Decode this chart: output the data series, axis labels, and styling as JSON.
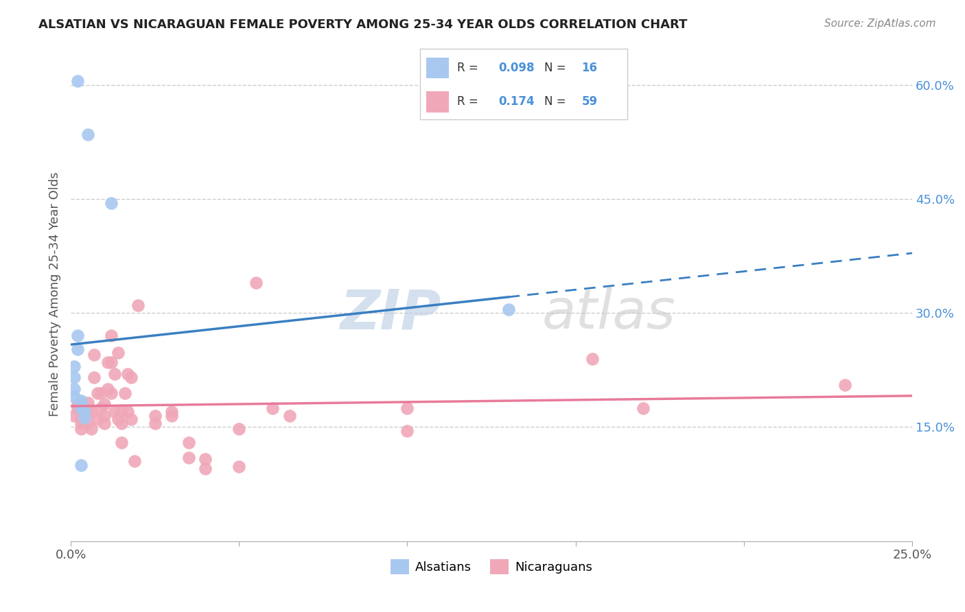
{
  "title": "ALSATIAN VS NICARAGUAN FEMALE POVERTY AMONG 25-34 YEAR OLDS CORRELATION CHART",
  "source": "Source: ZipAtlas.com",
  "ylabel": "Female Poverty Among 25-34 Year Olds",
  "x_min": 0.0,
  "x_max": 0.25,
  "y_min": 0.0,
  "y_max": 0.65,
  "x_tick_pos": [
    0.0,
    0.05,
    0.1,
    0.15,
    0.2,
    0.25
  ],
  "x_tick_labels": [
    "0.0%",
    "",
    "",
    "",
    "",
    "25.0%"
  ],
  "y_tick_pos": [
    0.15,
    0.3,
    0.45,
    0.6
  ],
  "y_tick_labels_right": [
    "15.0%",
    "30.0%",
    "45.0%",
    "60.0%"
  ],
  "grid_color": "#cccccc",
  "background_color": "#ffffff",
  "alsatian_color": "#a8c8f0",
  "nicaraguan_color": "#f0a8b8",
  "alsatian_line_color": "#3a7fc1",
  "nicaraguan_line_color": "#e87a9a",
  "alsatian_R": "0.098",
  "alsatian_N": "16",
  "nicaraguan_R": "0.174",
  "nicaraguan_N": "59",
  "watermark_zip": "ZIP",
  "watermark_atlas": "atlas",
  "alsatian_x": [
    0.002,
    0.005,
    0.012,
    0.002,
    0.002,
    0.001,
    0.001,
    0.001,
    0.001,
    0.003,
    0.003,
    0.003,
    0.004,
    0.004,
    0.13,
    0.003
  ],
  "alsatian_y": [
    0.605,
    0.535,
    0.445,
    0.27,
    0.252,
    0.23,
    0.215,
    0.2,
    0.19,
    0.185,
    0.182,
    0.175,
    0.17,
    0.162,
    0.305,
    0.1
  ],
  "nicaraguan_x": [
    0.001,
    0.002,
    0.002,
    0.003,
    0.003,
    0.003,
    0.004,
    0.004,
    0.005,
    0.005,
    0.005,
    0.006,
    0.006,
    0.007,
    0.007,
    0.008,
    0.008,
    0.009,
    0.009,
    0.01,
    0.01,
    0.01,
    0.011,
    0.011,
    0.012,
    0.012,
    0.012,
    0.013,
    0.013,
    0.014,
    0.014,
    0.015,
    0.015,
    0.015,
    0.016,
    0.017,
    0.017,
    0.018,
    0.018,
    0.019,
    0.02,
    0.025,
    0.025,
    0.03,
    0.03,
    0.035,
    0.035,
    0.04,
    0.04,
    0.05,
    0.05,
    0.055,
    0.06,
    0.065,
    0.1,
    0.1,
    0.155,
    0.17,
    0.23
  ],
  "nicaraguan_y": [
    0.165,
    0.18,
    0.175,
    0.162,
    0.155,
    0.148,
    0.175,
    0.165,
    0.182,
    0.17,
    0.155,
    0.17,
    0.148,
    0.245,
    0.215,
    0.195,
    0.16,
    0.195,
    0.175,
    0.18,
    0.165,
    0.155,
    0.235,
    0.2,
    0.27,
    0.235,
    0.195,
    0.22,
    0.17,
    0.248,
    0.16,
    0.17,
    0.155,
    0.13,
    0.195,
    0.22,
    0.17,
    0.215,
    0.16,
    0.105,
    0.31,
    0.165,
    0.155,
    0.17,
    0.165,
    0.11,
    0.13,
    0.108,
    0.095,
    0.148,
    0.098,
    0.34,
    0.175,
    0.165,
    0.175,
    0.145,
    0.24,
    0.175,
    0.205
  ]
}
